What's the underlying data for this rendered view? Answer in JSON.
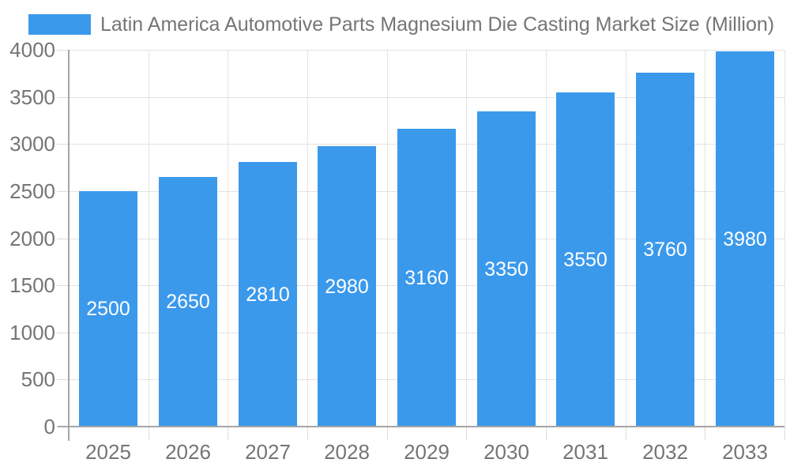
{
  "chart_data": {
    "type": "bar",
    "title": "Latin America Automotive Parts Magnesium Die Casting Market Size (Million)",
    "categories": [
      "2025",
      "2026",
      "2027",
      "2028",
      "2029",
      "2030",
      "2031",
      "2032",
      "2033"
    ],
    "values": [
      2500,
      2650,
      2810,
      2980,
      3160,
      3350,
      3550,
      3760,
      3980
    ],
    "value_labels": [
      "2500",
      "2650",
      "2810",
      "2980",
      "3160",
      "3350",
      "3550",
      "3760",
      "3980"
    ],
    "xlabel": "",
    "ylabel": "",
    "ylim": [
      0,
      4000
    ],
    "yticks": [
      0,
      500,
      1000,
      1500,
      2000,
      2500,
      3000,
      3500,
      4000
    ],
    "ytick_labels": [
      "0",
      "500",
      "1000",
      "1500",
      "2000",
      "2500",
      "3000",
      "3500",
      "4000"
    ],
    "grid": true,
    "legend_position": "top-left",
    "value_labels_position": "inside-middle",
    "colors": {
      "bar": "#3B99EC",
      "bar_value_label": "#FFFFFF",
      "grid_line": "#E3E3E3",
      "tick_line": "#DCDCDC",
      "axis_line": "#A6A6A6",
      "text": "#757575",
      "background": "#FFFFFF"
    }
  }
}
